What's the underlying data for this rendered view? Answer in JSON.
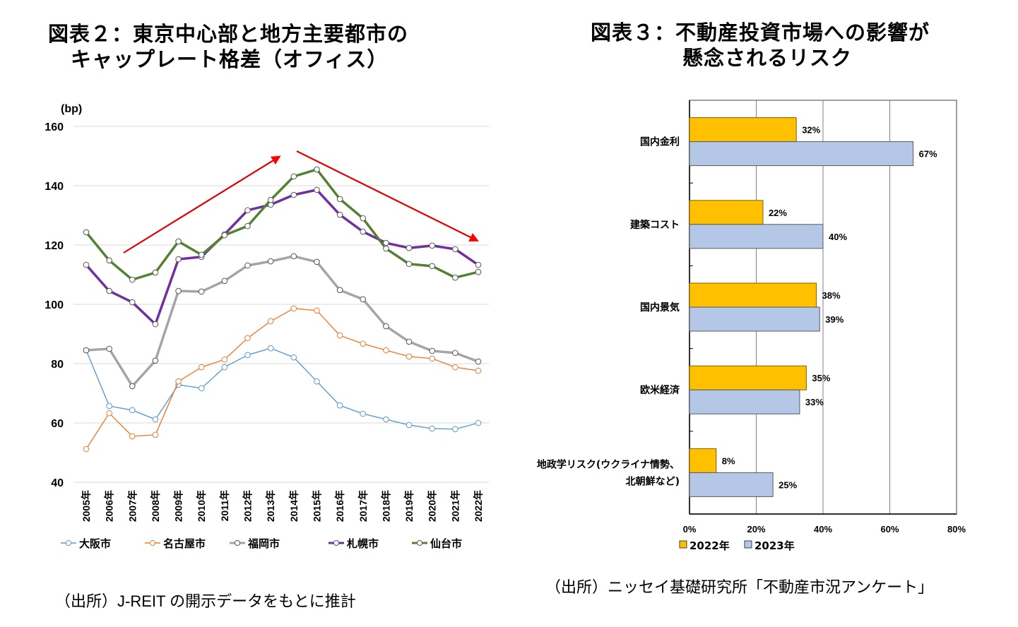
{
  "left_figure": {
    "title_line1": "図表２：東京中心部と地方主要都市の",
    "title_line2": "キャップレート格差（オフィス）",
    "source": "（出所）J-REIT の開示データをもとに推計"
  },
  "right_figure": {
    "title_line1": "図表３：不動産投資市場への影響が",
    "title_line2": "懸念されるリスク",
    "source": "（出所）ニッセイ基礎研究所「不動産市況アンケート」"
  },
  "chart_data": [
    {
      "type": "line",
      "title": "図表２：東京中心部と地方主要都市のキャップレート格差（オフィス）",
      "ylabel": "(bp)",
      "xlabel": "",
      "ylim": [
        40,
        160
      ],
      "yticks": [
        40,
        60,
        80,
        100,
        120,
        140,
        160
      ],
      "grid": true,
      "legend": "bottom",
      "x": [
        "2005年",
        "2006年",
        "2007年",
        "2008年",
        "2009年",
        "2010年",
        "2011年",
        "2012年",
        "2013年",
        "2014年",
        "2015年",
        "2016年",
        "2017年",
        "2018年",
        "2019年",
        "2020年",
        "2021年",
        "2022年"
      ],
      "series": [
        {
          "name": "大阪市",
          "color": "#5b9bd5",
          "width": 1.4,
          "values": [
            84.5,
            65.7,
            64.3,
            61.2,
            72.9,
            71.7,
            78.8,
            82.9,
            85.2,
            82.1,
            74.0,
            65.9,
            63.1,
            61.2,
            59.3,
            58.1,
            57.9,
            60.0
          ]
        },
        {
          "name": "名古屋市",
          "color": "#ed7d31",
          "width": 1.4,
          "values": [
            51.2,
            63.3,
            55.5,
            56.0,
            74.0,
            78.8,
            81.4,
            88.6,
            94.3,
            98.6,
            97.9,
            89.5,
            86.7,
            84.5,
            82.4,
            81.7,
            78.8,
            77.6
          ]
        },
        {
          "name": "福岡市",
          "color": "#a5a5a5",
          "width": 3.5,
          "values": [
            84.5,
            85.0,
            72.4,
            81.0,
            104.5,
            104.3,
            107.9,
            113.1,
            114.5,
            116.2,
            114.3,
            104.8,
            101.7,
            92.6,
            87.4,
            84.3,
            83.6,
            80.7
          ]
        },
        {
          "name": "札幌市",
          "color": "#7030a0",
          "width": 3.5,
          "values": [
            113.3,
            104.5,
            100.7,
            93.3,
            115.2,
            116.0,
            123.6,
            131.7,
            133.6,
            136.9,
            138.6,
            130.2,
            124.5,
            120.7,
            119.0,
            119.8,
            118.6,
            113.3
          ]
        },
        {
          "name": "仙台市",
          "color": "#548235",
          "width": 3.5,
          "values": [
            124.3,
            114.8,
            108.3,
            110.7,
            121.2,
            116.7,
            123.3,
            126.4,
            135.2,
            143.1,
            145.5,
            135.5,
            129.0,
            118.8,
            113.6,
            112.9,
            109.0,
            110.9
          ]
        }
      ],
      "annotations": [
        {
          "type": "arrow",
          "description": "upward trend arrow",
          "color": "#ff0000",
          "from": [
            "2006年",
            117
          ],
          "to": [
            "2014年",
            152
          ]
        },
        {
          "type": "arrow",
          "description": "downward trend arrow",
          "color": "#ff0000",
          "from": [
            "2014年",
            152
          ],
          "to": [
            "2022年",
            120
          ]
        }
      ]
    },
    {
      "type": "bar",
      "orientation": "horizontal",
      "title": "図表３：不動産投資市場への影響が懸念されるリスク",
      "xlabel": "",
      "ylabel": "",
      "xlim": [
        0,
        80
      ],
      "xticks": [
        "0%",
        "20%",
        "40%",
        "60%",
        "80%"
      ],
      "grid": true,
      "legend": "bottom-left",
      "categories": [
        "国内金利",
        "建築コスト",
        "国内景気",
        "欧米経済",
        "地政学リスク(ウクライナ情勢、北朝鮮など)"
      ],
      "category_lines": [
        [
          "国内金利"
        ],
        [
          "建築コスト"
        ],
        [
          "国内景気"
        ],
        [
          "欧米経済"
        ],
        [
          "地政学リスク(ウクライナ情勢、",
          "北朝鮮など)"
        ]
      ],
      "series": [
        {
          "name": "2022年",
          "color": "#ffc000",
          "values": [
            32,
            22,
            38,
            35,
            8
          ],
          "labels": [
            "32%",
            "22%",
            "38%",
            "35%",
            "8%"
          ]
        },
        {
          "name": "2023年",
          "color": "#b4c7e7",
          "values": [
            67,
            40,
            39,
            33,
            25
          ],
          "labels": [
            "67%",
            "40%",
            "39%",
            "33%",
            "25%"
          ]
        }
      ]
    }
  ]
}
